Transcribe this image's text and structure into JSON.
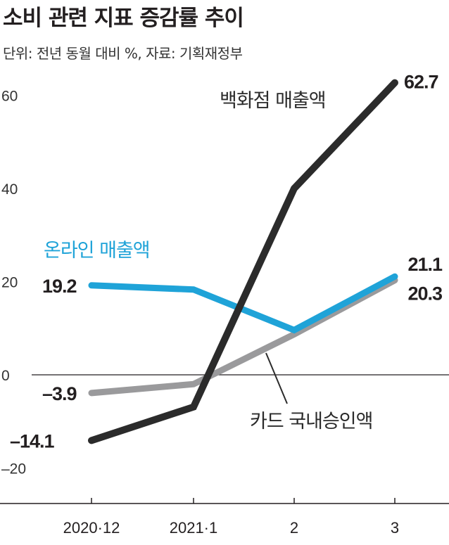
{
  "title": "소비 관련 지표 증감률 추이",
  "subtitle": "단위: 전년 동월 대비 %, 자료: 기획재정부",
  "colors": {
    "department": "#2b2b2b",
    "online": "#1fa3d8",
    "card": "#9a9a9c",
    "axis": "#231f20"
  },
  "chart_data": {
    "type": "line",
    "title": "소비 관련 지표 증감률 추이",
    "xlabel": "",
    "ylabel": "",
    "ylim": [
      -20,
      65
    ],
    "yticks": [
      "60",
      "40",
      "20",
      "0",
      "–20"
    ],
    "ytick_values": [
      60,
      40,
      20,
      0,
      -20
    ],
    "categories": [
      "2020·12",
      "2021·1",
      "2",
      "3"
    ],
    "series": [
      {
        "name": "백화점 매출액",
        "values": [
          -14.1,
          -6.9,
          40.0,
          62.7
        ],
        "start_label": "–14.1",
        "end_label": "62.7"
      },
      {
        "name": "온라인 매출액",
        "values": [
          19.2,
          18.3,
          9.6,
          21.1
        ],
        "start_label": "19.2",
        "end_label": "21.1"
      },
      {
        "name": "카드 국내승인액",
        "values": [
          -3.9,
          -2.0,
          8.7,
          20.3
        ],
        "start_label": "–3.9",
        "end_label": "20.3"
      }
    ],
    "grid": false,
    "legend": "inline labels"
  }
}
